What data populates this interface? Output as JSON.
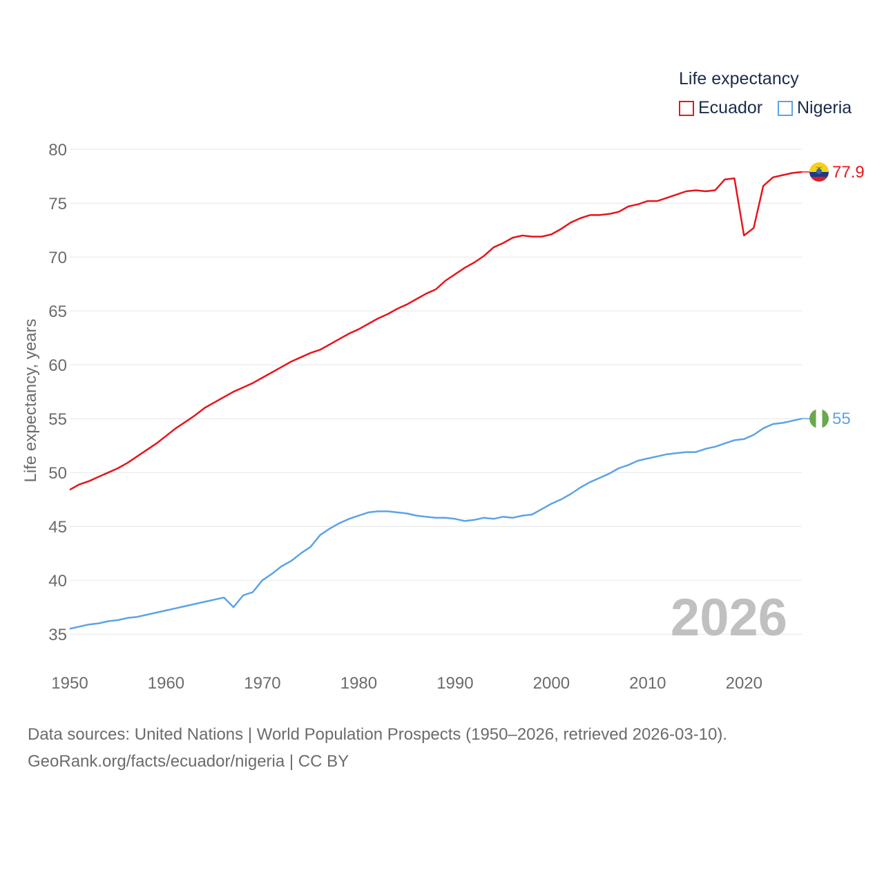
{
  "legend": {
    "title": "Life expectancy",
    "items": [
      {
        "label": "Ecuador",
        "color": "#e8141b"
      },
      {
        "label": "Nigeria",
        "color": "#5ba3e6"
      }
    ]
  },
  "footer": {
    "line1": "Data sources: United Nations | World Population Prospects (1950–2026, retrieved 2026-03-10).",
    "line2": "GeoRank.org/facts/ecuador/nigeria | CC BY"
  },
  "chart_data": {
    "type": "line",
    "title": "Life expectancy",
    "xlabel": "",
    "ylabel": "Life expectancy, years",
    "xlim": [
      1950,
      2026
    ],
    "ylim": [
      32,
      82
    ],
    "xticks": [
      1950,
      1960,
      1970,
      1980,
      1990,
      2000,
      2010,
      2020
    ],
    "yticks": [
      35,
      40,
      45,
      50,
      55,
      60,
      65,
      70,
      75,
      80
    ],
    "grid": true,
    "legend_position": "top-right",
    "year_label": "2026",
    "x": [
      1950,
      1951,
      1952,
      1953,
      1954,
      1955,
      1956,
      1957,
      1958,
      1959,
      1960,
      1961,
      1962,
      1963,
      1964,
      1965,
      1966,
      1967,
      1968,
      1969,
      1970,
      1971,
      1972,
      1973,
      1974,
      1975,
      1976,
      1977,
      1978,
      1979,
      1980,
      1981,
      1982,
      1983,
      1984,
      1985,
      1986,
      1987,
      1988,
      1989,
      1990,
      1991,
      1992,
      1993,
      1994,
      1995,
      1996,
      1997,
      1998,
      1999,
      2000,
      2001,
      2002,
      2003,
      2004,
      2005,
      2006,
      2007,
      2008,
      2009,
      2010,
      2011,
      2012,
      2013,
      2014,
      2015,
      2016,
      2017,
      2018,
      2019,
      2020,
      2021,
      2022,
      2023,
      2024,
      2025,
      2026
    ],
    "series": [
      {
        "name": "Ecuador",
        "color": "#e8141b",
        "end_label": "77.9",
        "values": [
          48.4,
          48.9,
          49.2,
          49.6,
          50.0,
          50.4,
          50.9,
          51.5,
          52.1,
          52.7,
          53.4,
          54.1,
          54.7,
          55.3,
          56.0,
          56.5,
          57.0,
          57.5,
          57.9,
          58.3,
          58.8,
          59.3,
          59.8,
          60.3,
          60.7,
          61.1,
          61.4,
          61.9,
          62.4,
          62.9,
          63.3,
          63.8,
          64.3,
          64.7,
          65.2,
          65.6,
          66.1,
          66.6,
          67.0,
          67.8,
          68.4,
          69.0,
          69.5,
          70.1,
          70.9,
          71.3,
          71.8,
          72.0,
          71.9,
          71.9,
          72.1,
          72.6,
          73.2,
          73.6,
          73.9,
          73.9,
          74.0,
          74.2,
          74.7,
          74.9,
          75.2,
          75.2,
          75.5,
          75.8,
          76.1,
          76.2,
          76.1,
          76.2,
          77.2,
          77.3,
          72.0,
          72.7,
          76.6,
          77.4,
          77.6,
          77.8,
          77.9
        ]
      },
      {
        "name": "Nigeria",
        "color": "#5ba3e6",
        "end_label": "55",
        "values": [
          35.5,
          35.7,
          35.9,
          36.0,
          36.2,
          36.3,
          36.5,
          36.6,
          36.8,
          37.0,
          37.2,
          37.4,
          37.6,
          37.8,
          38.0,
          38.2,
          38.4,
          37.5,
          38.6,
          38.9,
          40.0,
          40.6,
          41.3,
          41.8,
          42.5,
          43.1,
          44.2,
          44.8,
          45.3,
          45.7,
          46.0,
          46.3,
          46.4,
          46.4,
          46.3,
          46.2,
          46.0,
          45.9,
          45.8,
          45.8,
          45.7,
          45.5,
          45.6,
          45.8,
          45.7,
          45.9,
          45.8,
          46.0,
          46.1,
          46.6,
          47.1,
          47.5,
          48.0,
          48.6,
          49.1,
          49.5,
          49.9,
          50.4,
          50.7,
          51.1,
          51.3,
          51.5,
          51.7,
          51.8,
          51.9,
          51.9,
          52.2,
          52.4,
          52.7,
          53.0,
          53.1,
          53.5,
          54.1,
          54.5,
          54.6,
          54.8,
          55.0
        ]
      }
    ]
  }
}
